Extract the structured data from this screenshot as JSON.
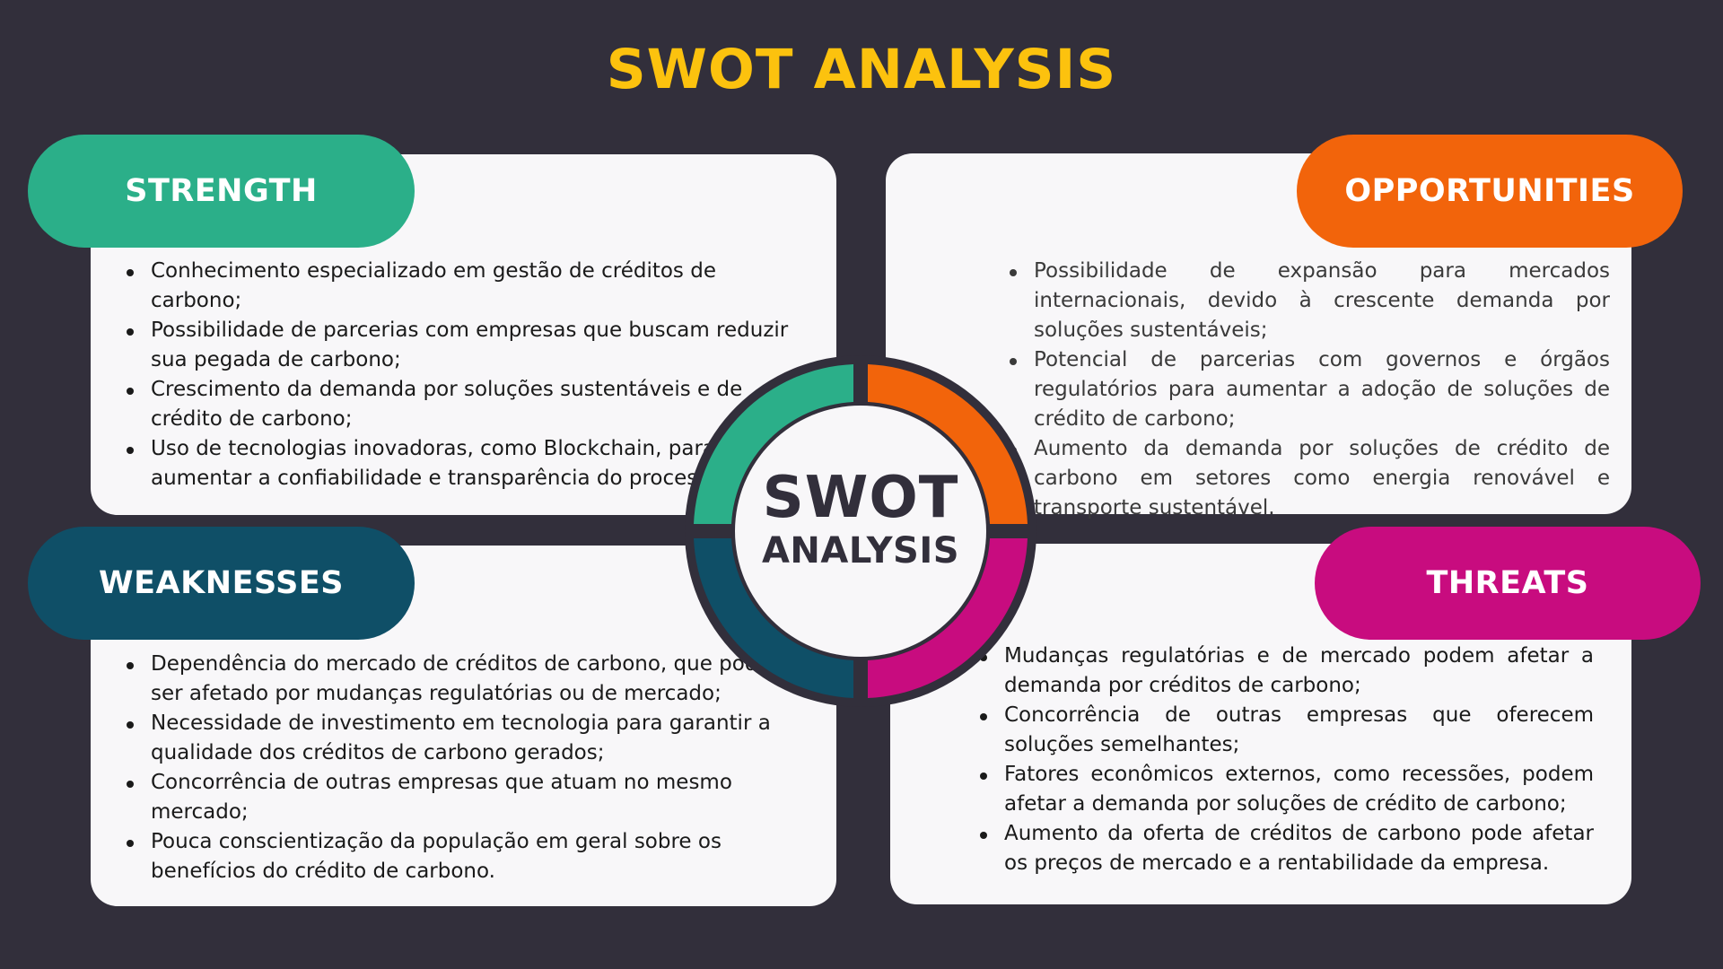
{
  "title": "SWOT ANALYSIS",
  "center": {
    "line1": "SWOT",
    "line2": "ANALYSIS"
  },
  "colors": {
    "background": "#322f3b",
    "title": "#fcc20e",
    "strength": "#2baf89",
    "opportunities": "#f2640b",
    "weaknesses": "#0f4f67",
    "threats": "#c80c7f",
    "card": "#f8f7f9"
  },
  "quadrants": {
    "strength": {
      "label": "STRENGTH",
      "items": [
        "Conhecimento especializado em gestão de créditos de carbono;",
        "Possibilidade de parcerias com empresas que buscam reduzir sua pegada de carbono;",
        "Crescimento da demanda por soluções sustentáveis e de crédito de carbono;",
        "Uso de tecnologias inovadoras, como Blockchain, para aumentar a confiabilidade e transparência do processo."
      ]
    },
    "opportunities": {
      "label": "OPPORTUNITIES",
      "items": [
        "Possibilidade de expansão para mercados internacionais, devido à crescente demanda por soluções sustentáveis;",
        "Potencial de parcerias com governos e órgãos regulatórios para aumentar a adoção de soluções de crédito de carbono;",
        "Aumento da demanda por soluções de crédito de carbono em setores como energia renovável e transporte sustentável."
      ]
    },
    "weaknesses": {
      "label": "WEAKNESSES",
      "items": [
        "Dependência do mercado de créditos de carbono, que pode ser afetado por mudanças regulatórias ou de mercado;",
        "Necessidade de investimento em tecnologia para garantir a qualidade dos créditos de carbono gerados;",
        "Concorrência de outras empresas que atuam no mesmo mercado;",
        "Pouca conscientização da população em geral sobre os benefícios do crédito de carbono."
      ]
    },
    "threats": {
      "label": "THREATS",
      "items": [
        "Mudanças regulatórias e de mercado podem afetar a demanda por créditos de carbono;",
        "Concorrência de outras empresas que oferecem soluções semelhantes;",
        "Fatores econômicos externos, como recessões, podem afetar a demanda por soluções de crédito de carbono;",
        "Aumento da oferta de créditos de carbono pode afetar os preços de mercado e a rentabilidade da empresa."
      ]
    }
  }
}
